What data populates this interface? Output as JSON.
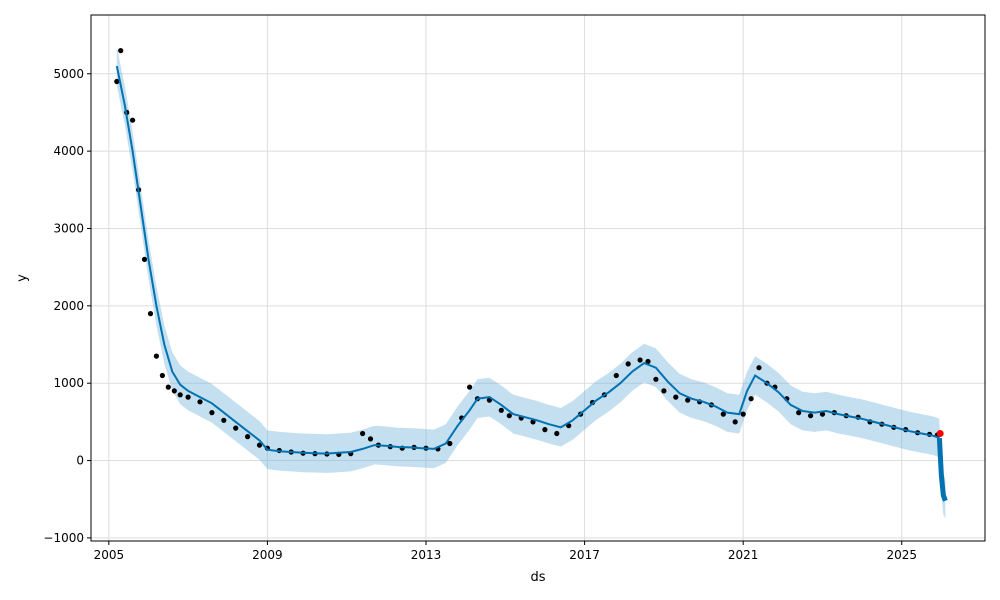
{
  "chart_data": {
    "type": "line",
    "title": "",
    "xlabel": "ds",
    "ylabel": "y",
    "xlim": [
      2004.55,
      2027.1
    ],
    "ylim": [
      -1040,
      5760
    ],
    "x_ticks": [
      2005,
      2009,
      2013,
      2017,
      2021,
      2025
    ],
    "x_tick_labels": [
      "2005",
      "2009",
      "2013",
      "2017",
      "2021",
      "2025"
    ],
    "y_ticks": [
      -1000,
      0,
      1000,
      2000,
      3000,
      4000,
      5000
    ],
    "y_tick_labels": [
      "−1000",
      "0",
      "1000",
      "2000",
      "3000",
      "4000",
      "5000"
    ],
    "grid": true,
    "colors": {
      "observed": "#000000",
      "forecast": "#0072B2",
      "uncertainty": "#6BAED6",
      "highlight": "#FF0000",
      "grid": "#dddddd"
    },
    "series": [
      {
        "role": "observed",
        "style": "points",
        "x": [
          2005.2,
          2005.3,
          2005.45,
          2005.6,
          2005.75,
          2005.9,
          2006.05,
          2006.2,
          2006.35,
          2006.5,
          2006.65,
          2006.8,
          2007.0,
          2007.3,
          2007.6,
          2007.9,
          2008.2,
          2008.5,
          2008.8,
          2009.0,
          2009.3,
          2009.6,
          2009.9,
          2010.2,
          2010.5,
          2010.8,
          2011.1,
          2011.4,
          2011.6,
          2011.8,
          2012.1,
          2012.4,
          2012.7,
          2013.0,
          2013.3,
          2013.6,
          2013.9,
          2014.1,
          2014.3,
          2014.6,
          2014.9,
          2015.1,
          2015.4,
          2015.7,
          2016.0,
          2016.3,
          2016.6,
          2016.9,
          2017.2,
          2017.5,
          2017.8,
          2018.1,
          2018.4,
          2018.6,
          2018.8,
          2019.0,
          2019.3,
          2019.6,
          2019.9,
          2020.2,
          2020.5,
          2020.8,
          2021.0,
          2021.2,
          2021.4,
          2021.6,
          2021.8,
          2022.1,
          2022.4,
          2022.7,
          2023.0,
          2023.3,
          2023.6,
          2023.9,
          2024.2,
          2024.5,
          2024.8,
          2025.1,
          2025.4,
          2025.7,
          2025.9
        ],
        "y": [
          4900,
          5300,
          4500,
          4400,
          3500,
          2600,
          1900,
          1350,
          1100,
          950,
          900,
          850,
          820,
          760,
          620,
          520,
          420,
          310,
          200,
          160,
          130,
          110,
          95,
          90,
          85,
          80,
          90,
          350,
          280,
          200,
          180,
          160,
          170,
          160,
          150,
          220,
          550,
          950,
          800,
          780,
          650,
          580,
          550,
          500,
          400,
          350,
          450,
          600,
          750,
          850,
          1100,
          1250,
          1300,
          1280,
          1050,
          900,
          820,
          780,
          760,
          720,
          600,
          500,
          600,
          800,
          1200,
          1000,
          950,
          800,
          620,
          580,
          600,
          620,
          580,
          560,
          500,
          470,
          430,
          400,
          360,
          340,
          330
        ]
      },
      {
        "role": "forecast",
        "style": "line",
        "x": [
          2005.2,
          2005.4,
          2005.6,
          2005.8,
          2006.0,
          2006.2,
          2006.4,
          2006.6,
          2006.8,
          2007.0,
          2007.3,
          2007.6,
          2007.9,
          2008.2,
          2008.5,
          2008.8,
          2009.0,
          2009.3,
          2009.6,
          2009.9,
          2010.2,
          2010.5,
          2010.8,
          2011.1,
          2011.4,
          2011.7,
          2012.0,
          2012.3,
          2012.6,
          2012.9,
          2013.2,
          2013.5,
          2013.8,
          2014.1,
          2014.3,
          2014.6,
          2014.9,
          2015.2,
          2015.5,
          2015.8,
          2016.1,
          2016.4,
          2016.7,
          2017.0,
          2017.3,
          2017.6,
          2017.9,
          2018.2,
          2018.5,
          2018.8,
          2019.1,
          2019.4,
          2019.7,
          2020.0,
          2020.3,
          2020.6,
          2020.9,
          2021.1,
          2021.3,
          2021.6,
          2021.9,
          2022.2,
          2022.5,
          2022.8,
          2023.1,
          2023.4,
          2023.7,
          2024.0,
          2024.3,
          2024.6,
          2024.9,
          2025.2,
          2025.5,
          2025.8,
          2025.95
        ],
        "y": [
          5100,
          4600,
          4000,
          3300,
          2600,
          2000,
          1500,
          1150,
          980,
          900,
          820,
          740,
          620,
          500,
          380,
          260,
          140,
          120,
          110,
          100,
          95,
          90,
          100,
          110,
          150,
          200,
          190,
          175,
          170,
          160,
          150,
          220,
          450,
          650,
          800,
          820,
          720,
          600,
          560,
          520,
          470,
          430,
          520,
          650,
          780,
          880,
          1000,
          1150,
          1260,
          1200,
          1020,
          870,
          800,
          760,
          700,
          620,
          600,
          900,
          1100,
          1000,
          880,
          720,
          640,
          620,
          640,
          600,
          570,
          540,
          500,
          460,
          420,
          380,
          350,
          320,
          290
        ],
        "lower": [
          4850,
          4350,
          3750,
          3050,
          2350,
          1750,
          1250,
          900,
          730,
          650,
          570,
          490,
          370,
          250,
          130,
          10,
          -110,
          -130,
          -140,
          -150,
          -155,
          -160,
          -150,
          -140,
          -100,
          -50,
          -60,
          -75,
          -80,
          -90,
          -100,
          -30,
          200,
          400,
          550,
          570,
          470,
          350,
          310,
          270,
          220,
          180,
          270,
          400,
          530,
          630,
          750,
          900,
          1010,
          950,
          770,
          620,
          550,
          510,
          450,
          370,
          350,
          650,
          850,
          750,
          630,
          470,
          390,
          370,
          390,
          350,
          320,
          290,
          250,
          210,
          170,
          130,
          100,
          70,
          40
        ],
        "upper": [
          5350,
          4850,
          4250,
          3550,
          2850,
          2250,
          1750,
          1400,
          1230,
          1150,
          1070,
          990,
          870,
          750,
          630,
          510,
          390,
          370,
          360,
          350,
          345,
          340,
          350,
          360,
          400,
          450,
          440,
          425,
          420,
          410,
          400,
          470,
          700,
          900,
          1050,
          1070,
          970,
          850,
          810,
          770,
          720,
          680,
          770,
          900,
          1030,
          1130,
          1250,
          1400,
          1510,
          1450,
          1270,
          1120,
          1050,
          1010,
          950,
          870,
          850,
          1150,
          1350,
          1250,
          1130,
          970,
          890,
          870,
          890,
          850,
          820,
          790,
          750,
          710,
          670,
          630,
          600,
          570,
          540
        ]
      },
      {
        "role": "future forecast",
        "style": "band",
        "x": [
          2025.95,
          2026.0,
          2026.05,
          2026.1
        ],
        "y": [
          290,
          -200,
          -450,
          -520
        ],
        "lower": [
          60,
          -450,
          -700,
          -750
        ],
        "upper": [
          480,
          150,
          -150,
          -250
        ]
      },
      {
        "role": "highlight",
        "style": "points",
        "x": [
          2025.97
        ],
        "y": [
          350
        ]
      }
    ]
  }
}
